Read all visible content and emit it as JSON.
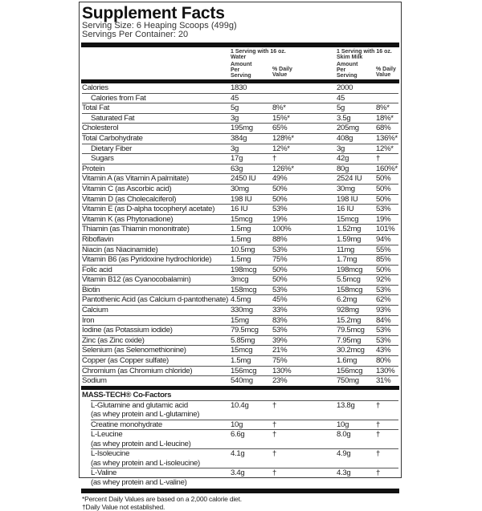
{
  "title": "Supplement Facts",
  "serving_size": "Serving Size: 6 Heaping Scoops (499g)",
  "servings_per_container": "Servings Per Container: 20",
  "columns": {
    "water_header": "1 Serving with 16 oz. Water",
    "milk_header": "1 Serving with 16 oz. Skim Milk",
    "amount_header": "Amount Per Serving",
    "dv_header": "% Daily Value"
  },
  "nutrients": [
    {
      "name": "Calories",
      "a1": "1830",
      "d1": "",
      "a2": "2000",
      "d2": "",
      "indent": false
    },
    {
      "name": "Calories from Fat",
      "a1": "45",
      "d1": "",
      "a2": "45",
      "d2": "",
      "indent": true
    },
    {
      "name": "Total Fat",
      "a1": "5g",
      "d1": "8%*",
      "a2": "5g",
      "d2": "8%*",
      "indent": false
    },
    {
      "name": "Saturated Fat",
      "a1": "3g",
      "d1": "15%*",
      "a2": "3.5g",
      "d2": "18%*",
      "indent": true
    },
    {
      "name": "Cholesterol",
      "a1": "195mg",
      "d1": "65%",
      "a2": "205mg",
      "d2": "68%",
      "indent": false
    },
    {
      "name": "Total Carbohydrate",
      "a1": "384g",
      "d1": "128%*",
      "a2": "408g",
      "d2": "136%*",
      "indent": false
    },
    {
      "name": "Dietary Fiber",
      "a1": "3g",
      "d1": "12%*",
      "a2": "3g",
      "d2": "12%*",
      "indent": true
    },
    {
      "name": "Sugars",
      "a1": "17g",
      "d1": "†",
      "a2": "42g",
      "d2": "†",
      "indent": true
    },
    {
      "name": "Protein",
      "a1": "63g",
      "d1": "126%*",
      "a2": "80g",
      "d2": "160%*",
      "indent": false
    },
    {
      "name": "Vitamin A (as Vitamin A palmitate)",
      "a1": "2450 IU",
      "d1": "49%",
      "a2": "2524 IU",
      "d2": "50%",
      "indent": false
    },
    {
      "name": "Vitamin C (as Ascorbic acid)",
      "a1": "30mg",
      "d1": "50%",
      "a2": "30mg",
      "d2": "50%",
      "indent": false
    },
    {
      "name": "Vitamin D (as Cholecalciferol)",
      "a1": "198 IU",
      "d1": "50%",
      "a2": "198 IU",
      "d2": "50%",
      "indent": false
    },
    {
      "name": "Vitamin E (as D-alpha tocopheryl acetate)",
      "a1": "16 IU",
      "d1": "53%",
      "a2": "16 IU",
      "d2": "53%",
      "indent": false
    },
    {
      "name": "Vitamin K (as Phytonadione)",
      "a1": "15mcg",
      "d1": "19%",
      "a2": "15mcg",
      "d2": "19%",
      "indent": false
    },
    {
      "name": "Thiamin (as Thiamin mononitrate)",
      "a1": "1.5mg",
      "d1": "100%",
      "a2": "1.52mg",
      "d2": "101%",
      "indent": false
    },
    {
      "name": "Riboflavin",
      "a1": "1.5mg",
      "d1": "88%",
      "a2": "1.59mg",
      "d2": "94%",
      "indent": false
    },
    {
      "name": "Niacin (as Niacinamide)",
      "a1": "10.5mg",
      "d1": "53%",
      "a2": "11mg",
      "d2": "55%",
      "indent": false
    },
    {
      "name": "Vitamin B6 (as Pyridoxine hydrochloride)",
      "a1": "1.5mg",
      "d1": "75%",
      "a2": "1.7mg",
      "d2": "85%",
      "indent": false
    },
    {
      "name": "Folic acid",
      "a1": "198mcg",
      "d1": "50%",
      "a2": "198mcg",
      "d2": "50%",
      "indent": false
    },
    {
      "name": "Vitamin B12 (as Cyanocobalamin)",
      "a1": "3mcg",
      "d1": "50%",
      "a2": "5.5mcg",
      "d2": "92%",
      "indent": false
    },
    {
      "name": "Biotin",
      "a1": "158mcg",
      "d1": "53%",
      "a2": "158mcg",
      "d2": "53%",
      "indent": false
    },
    {
      "name": "Pantothenic Acid (as Calcium d-pantothenate)",
      "a1": "4.5mg",
      "d1": "45%",
      "a2": "6.2mg",
      "d2": "62%",
      "indent": false
    },
    {
      "name": "Calcium",
      "a1": "330mg",
      "d1": "33%",
      "a2": "928mg",
      "d2": "93%",
      "indent": false
    },
    {
      "name": "Iron",
      "a1": "15mg",
      "d1": "83%",
      "a2": "15.2mg",
      "d2": "84%",
      "indent": false
    },
    {
      "name": "Iodine (as Potassium iodide)",
      "a1": "79.5mcg",
      "d1": "53%",
      "a2": "79.5mcg",
      "d2": "53%",
      "indent": false
    },
    {
      "name": "Zinc (as Zinc oxide)",
      "a1": "5.85mg",
      "d1": "39%",
      "a2": "7.95mg",
      "d2": "53%",
      "indent": false
    },
    {
      "name": "Selenium (as Selenomethionine)",
      "a1": "15mcg",
      "d1": "21%",
      "a2": "30.2mcg",
      "d2": "43%",
      "indent": false
    },
    {
      "name": "Copper (as Copper sulfate)",
      "a1": "1.5mg",
      "d1": "75%",
      "a2": "1.6mg",
      "d2": "80%",
      "indent": false
    },
    {
      "name": "Chromium (as Chromium chloride)",
      "a1": "156mcg",
      "d1": "130%",
      "a2": "156mcg",
      "d2": "130%",
      "indent": false
    },
    {
      "name": "Sodium",
      "a1": "540mg",
      "d1": "23%",
      "a2": "750mg",
      "d2": "31%",
      "indent": false
    }
  ],
  "cofactors": {
    "header": "MASS-TECH® Co-Factors",
    "items": [
      {
        "name": "L-Glutamine and glutamic acid",
        "sub": "(as whey protein and L-glutamine)",
        "a1": "10.4g",
        "d1": "†",
        "a2": "13.8g",
        "d2": "†"
      },
      {
        "name": "Creatine monohydrate",
        "sub": "",
        "a1": "10g",
        "d1": "†",
        "a2": "10g",
        "d2": "†"
      },
      {
        "name": "L-Leucine",
        "sub": "(as whey protein and L-leucine)",
        "a1": "6.6g",
        "d1": "†",
        "a2": "8.0g",
        "d2": "†"
      },
      {
        "name": "L-Isoleucine",
        "sub": "(as whey protein and L-isoleucine)",
        "a1": "4.1g",
        "d1": "†",
        "a2": "4.9g",
        "d2": "†"
      },
      {
        "name": "L-Valine",
        "sub": "(as whey protein and L-valine)",
        "a1": "3.4g",
        "d1": "†",
        "a2": "4.3g",
        "d2": "†"
      }
    ]
  },
  "footnotes": [
    "*Percent Daily Values are based on a 2,000 calorie diet.",
    "†Daily Value not established."
  ]
}
